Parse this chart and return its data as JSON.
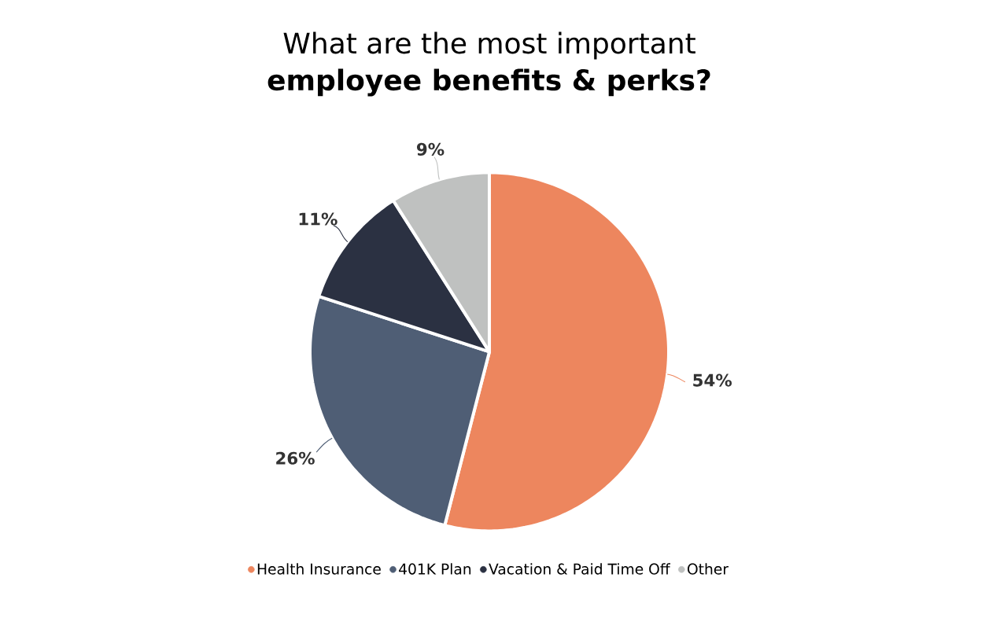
{
  "chart_data": {
    "type": "pie",
    "title": "What are the most important",
    "subtitle": "employee benefits & perks?",
    "categories": [
      "Health Insurance",
      "401K Plan",
      "Vacation & Paid Time Off",
      "Other"
    ],
    "values": [
      54,
      26,
      11,
      9
    ],
    "colors": [
      "#ed865e",
      "#4f5e75",
      "#2b3142",
      "#bfc1c0"
    ],
    "value_labels": [
      "54%",
      "26%",
      "11%",
      "9%"
    ],
    "legend": "bottom"
  }
}
